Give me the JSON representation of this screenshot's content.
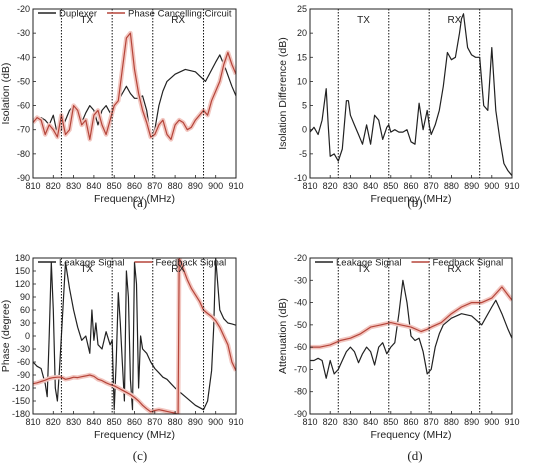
{
  "colors": {
    "black": "#222222",
    "red": "#b5453a",
    "band": "#f2c6c0"
  },
  "chart_data": [
    {
      "id": "a",
      "type": "line",
      "panel_label": "(a)",
      "xlabel": "Frequency (MHz)",
      "ylabel": "Isolation (dB)",
      "xlim": [
        810,
        910
      ],
      "ylim": [
        -90,
        -20
      ],
      "xticks": [
        810,
        820,
        830,
        840,
        850,
        860,
        870,
        880,
        890,
        900,
        910
      ],
      "yticks": [
        -90,
        -80,
        -70,
        -60,
        -50,
        -40,
        -30,
        -20
      ],
      "vlines": [
        824,
        849,
        869,
        894
      ],
      "regions": [
        {
          "label": "TX",
          "x": 836.5
        },
        {
          "label": "RX",
          "x": 881.5
        }
      ],
      "legend": "top",
      "series": [
        {
          "name": "Duplexer",
          "color": "black",
          "band": false,
          "x": [
            810,
            812,
            814,
            816,
            818,
            820,
            822,
            824,
            826,
            828,
            830,
            832,
            834,
            836,
            838,
            840,
            842,
            844,
            846,
            848,
            850,
            852,
            854,
            856,
            858,
            860,
            862,
            864,
            866,
            868,
            870,
            872,
            874,
            876,
            880,
            885,
            890,
            895,
            900,
            902,
            905,
            908,
            910
          ],
          "y": [
            -66,
            -66,
            -65,
            -66,
            -68,
            -64,
            -72,
            -70,
            -66,
            -62,
            -60,
            -62,
            -67,
            -63,
            -60,
            -62,
            -68,
            -62,
            -60,
            -63,
            -60,
            -58,
            -55,
            -52,
            -55,
            -57,
            -57,
            -56,
            -62,
            -73,
            -70,
            -60,
            -54,
            -50,
            -47,
            -45,
            -46,
            -50,
            -42,
            -39,
            -45,
            -52,
            -56
          ]
        },
        {
          "name": "Phase Cancelling Circuit",
          "color": "red",
          "band": true,
          "x": [
            810,
            812,
            814,
            816,
            818,
            820,
            822,
            824,
            826,
            828,
            830,
            832,
            834,
            836,
            838,
            840,
            842,
            844,
            846,
            848,
            850,
            852,
            854,
            856,
            858,
            860,
            862,
            864,
            866,
            868,
            870,
            872,
            874,
            876,
            878,
            880,
            882,
            884,
            886,
            888,
            890,
            892,
            894,
            896,
            898,
            900,
            902,
            904,
            906,
            908,
            910
          ],
          "y": [
            -67,
            -65,
            -66,
            -72,
            -68,
            -70,
            -73,
            -64,
            -72,
            -70,
            -60,
            -62,
            -68,
            -66,
            -74,
            -64,
            -62,
            -68,
            -72,
            -66,
            -60,
            -58,
            -45,
            -32,
            -30,
            -45,
            -55,
            -62,
            -67,
            -73,
            -72,
            -68,
            -66,
            -72,
            -74,
            -68,
            -66,
            -67,
            -70,
            -69,
            -66,
            -64,
            -62,
            -64,
            -58,
            -54,
            -50,
            -43,
            -38,
            -43,
            -47
          ]
        }
      ]
    },
    {
      "id": "b",
      "type": "line",
      "panel_label": "(b)",
      "xlabel": "Frequency (MHz)",
      "ylabel": "Isolation Difference (dB)",
      "xlim": [
        810,
        910
      ],
      "ylim": [
        -10,
        25
      ],
      "xticks": [
        810,
        820,
        830,
        840,
        850,
        860,
        870,
        880,
        890,
        900,
        910
      ],
      "yticks": [
        -10,
        -5,
        0,
        5,
        10,
        15,
        20,
        25
      ],
      "vlines": [
        824,
        849,
        869,
        894
      ],
      "regions": [
        {
          "label": "TX",
          "x": 836.5
        },
        {
          "label": "RX",
          "x": 881.5
        }
      ],
      "series": [
        {
          "name": "",
          "color": "black",
          "band": false,
          "x": [
            810,
            812,
            814,
            816,
            818,
            819,
            820,
            822,
            824,
            826,
            828,
            829,
            830,
            832,
            834,
            836,
            838,
            840,
            842,
            844,
            846,
            848,
            849,
            850,
            852,
            854,
            856,
            858,
            860,
            862,
            864,
            866,
            868,
            869,
            870,
            872,
            874,
            876,
            878,
            880,
            882,
            884,
            885,
            886,
            888,
            890,
            892,
            894,
            896,
            898,
            900,
            902,
            904,
            906,
            908,
            910
          ],
          "y": [
            -0.5,
            0.5,
            -1,
            2,
            8.5,
            1,
            -5.5,
            -5,
            -6.5,
            -4,
            6,
            6,
            3,
            1,
            -1,
            -3,
            1,
            -3,
            3,
            2,
            -2,
            0.5,
            1,
            -0.5,
            0,
            -0.5,
            -0.5,
            0,
            -2.5,
            -3,
            5.5,
            0,
            4,
            1,
            -1,
            1,
            4,
            9,
            16,
            14.5,
            15,
            20,
            23,
            24,
            17,
            15.5,
            15,
            15,
            5,
            4,
            17,
            4,
            -2,
            -7,
            -8.5,
            -9.5
          ]
        }
      ]
    },
    {
      "id": "c",
      "type": "line",
      "panel_label": "(c)",
      "xlabel": "Frequency (MHz)",
      "ylabel": "Phase (degree)",
      "xlim": [
        810,
        910
      ],
      "ylim": [
        -180,
        180
      ],
      "xticks": [
        810,
        820,
        830,
        840,
        850,
        860,
        870,
        880,
        890,
        900,
        910
      ],
      "yticks": [
        -180,
        -150,
        -120,
        -90,
        -60,
        -30,
        0,
        30,
        60,
        90,
        120,
        150,
        180
      ],
      "vlines": [
        824,
        849,
        869,
        894
      ],
      "regions": [
        {
          "label": "TX",
          "x": 836.5
        },
        {
          "label": "RX",
          "x": 881.5
        }
      ],
      "legend": "top",
      "series": [
        {
          "name": "Leakage Signal",
          "color": "black",
          "band": false,
          "x": [
            810,
            812,
            814,
            816,
            817,
            818,
            819,
            820,
            821,
            822,
            823,
            824,
            826,
            827,
            828,
            830,
            832,
            834,
            836,
            838,
            839,
            840,
            841,
            842,
            844,
            846,
            848,
            849,
            850,
            851,
            852,
            853,
            854,
            855,
            856,
            857,
            858,
            859,
            860,
            861,
            862,
            863,
            864,
            866,
            868,
            870,
            872,
            874,
            876,
            878,
            880,
            885,
            890,
            894,
            896,
            898,
            899,
            900,
            902,
            904,
            906,
            908,
            910
          ],
          "y": [
            -60,
            -70,
            -75,
            -110,
            -140,
            0,
            170,
            60,
            -120,
            -150,
            -80,
            0,
            170,
            140,
            110,
            60,
            20,
            -10,
            0,
            -40,
            60,
            -10,
            30,
            -20,
            -30,
            10,
            -20,
            -10,
            -170,
            -60,
            100,
            30,
            -60,
            -150,
            150,
            90,
            -100,
            -170,
            170,
            120,
            -120,
            0,
            -30,
            -40,
            -60,
            -75,
            -85,
            -95,
            -100,
            -110,
            -120,
            -140,
            -160,
            -170,
            -150,
            -80,
            20,
            180,
            60,
            40,
            30,
            28,
            25
          ]
        },
        {
          "name": "Feedback Signal",
          "color": "red",
          "band": true,
          "x": [
            810,
            812,
            814,
            816,
            818,
            820,
            822,
            824,
            826,
            828,
            830,
            832,
            834,
            836,
            838,
            840,
            842,
            844,
            846,
            848,
            850,
            852,
            854,
            856,
            858,
            860,
            862,
            864,
            866,
            868,
            870,
            872,
            874,
            876,
            878,
            880,
            881,
            881.5,
            882,
            884,
            886,
            888,
            890,
            892,
            894,
            896,
            898,
            900,
            902,
            904,
            906,
            908,
            910
          ],
          "y": [
            -110,
            -108,
            -105,
            -102,
            -98,
            -96,
            -95,
            -95,
            -100,
            -98,
            -95,
            -96,
            -94,
            -92,
            -90,
            -93,
            -100,
            -103,
            -108,
            -112,
            -115,
            -120,
            -125,
            -130,
            -135,
            -142,
            -150,
            -160,
            -168,
            -175,
            -172,
            -170,
            -172,
            -174,
            -176,
            -178,
            -180,
            -180,
            180,
            155,
            130,
            110,
            95,
            80,
            60,
            52,
            45,
            35,
            20,
            0,
            -20,
            -60,
            -80
          ]
        }
      ]
    },
    {
      "id": "d",
      "type": "line",
      "panel_label": "(d)",
      "xlabel": "Frequency (MHz)",
      "ylabel": "Attenuation (dB)",
      "xlim": [
        810,
        910
      ],
      "ylim": [
        -90,
        -20
      ],
      "xticks": [
        810,
        820,
        830,
        840,
        850,
        860,
        870,
        880,
        890,
        900,
        910
      ],
      "yticks": [
        -90,
        -80,
        -70,
        -60,
        -50,
        -40,
        -30,
        -20
      ],
      "vlines": [
        824,
        849,
        869,
        894
      ],
      "regions": [
        {
          "label": "TX",
          "x": 836.5
        },
        {
          "label": "RX",
          "x": 881.5
        }
      ],
      "legend": "top",
      "series": [
        {
          "name": "Leakage Signal",
          "color": "black",
          "band": false,
          "x": [
            810,
            812,
            814,
            816,
            818,
            820,
            822,
            824,
            826,
            828,
            830,
            832,
            834,
            836,
            838,
            840,
            842,
            844,
            846,
            848,
            850,
            852,
            854,
            856,
            858,
            860,
            862,
            864,
            866,
            868,
            870,
            872,
            874,
            876,
            880,
            885,
            890,
            895,
            900,
            902,
            905,
            908,
            910
          ],
          "y": [
            -66,
            -66,
            -65,
            -66,
            -74,
            -66,
            -72,
            -70,
            -66,
            -62,
            -60,
            -62,
            -67,
            -63,
            -60,
            -62,
            -68,
            -60,
            -58,
            -63,
            -60,
            -58,
            -45,
            -30,
            -40,
            -55,
            -57,
            -56,
            -62,
            -72,
            -70,
            -60,
            -54,
            -50,
            -47,
            -45,
            -46,
            -50,
            -42,
            -39,
            -45,
            -52,
            -56
          ]
        },
        {
          "name": "Feedback Signal",
          "color": "red",
          "band": true,
          "x": [
            810,
            815,
            820,
            825,
            830,
            835,
            840,
            845,
            850,
            855,
            860,
            865,
            868,
            870,
            875,
            880,
            885,
            890,
            895,
            900,
            905,
            910
          ],
          "y": [
            -60,
            -60,
            -59,
            -57,
            -56,
            -54,
            -51,
            -50,
            -49,
            -50,
            -51,
            -53,
            -52,
            -51,
            -49,
            -45,
            -42,
            -40,
            -40,
            -38,
            -33,
            -39
          ]
        }
      ]
    }
  ]
}
